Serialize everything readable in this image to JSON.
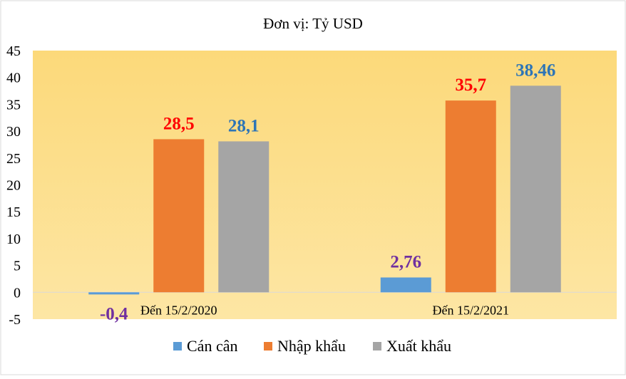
{
  "chart_data": {
    "type": "bar",
    "title": "Đơn vị: Tỷ USD",
    "xlabel": "",
    "ylabel": "",
    "ylim": [
      -5,
      45
    ],
    "yticks": [
      45,
      40,
      35,
      30,
      25,
      20,
      15,
      10,
      5,
      0,
      -5
    ],
    "grid": false,
    "legend_position": "bottom",
    "categories": [
      "Đến 15/2/2020",
      "Đến 15/2/2021"
    ],
    "series": [
      {
        "name": "Cán cân",
        "values": [
          -0.4,
          2.76
        ],
        "labels": [
          "-0,4",
          "2,76"
        ],
        "color": "#5b9bd5",
        "label_color": "#7030a0"
      },
      {
        "name": "Nhập khẩu",
        "values": [
          28.5,
          35.7
        ],
        "labels": [
          "28,5",
          "35,7"
        ],
        "color": "#ed7d31",
        "label_color": "#ff0000"
      },
      {
        "name": "Xuất khẩu",
        "values": [
          28.1,
          38.46
        ],
        "labels": [
          "28,1",
          "38,46"
        ],
        "color": "#a5a5a5",
        "label_color": "#2e75b6"
      }
    ],
    "plot_background": "#fcd979"
  }
}
